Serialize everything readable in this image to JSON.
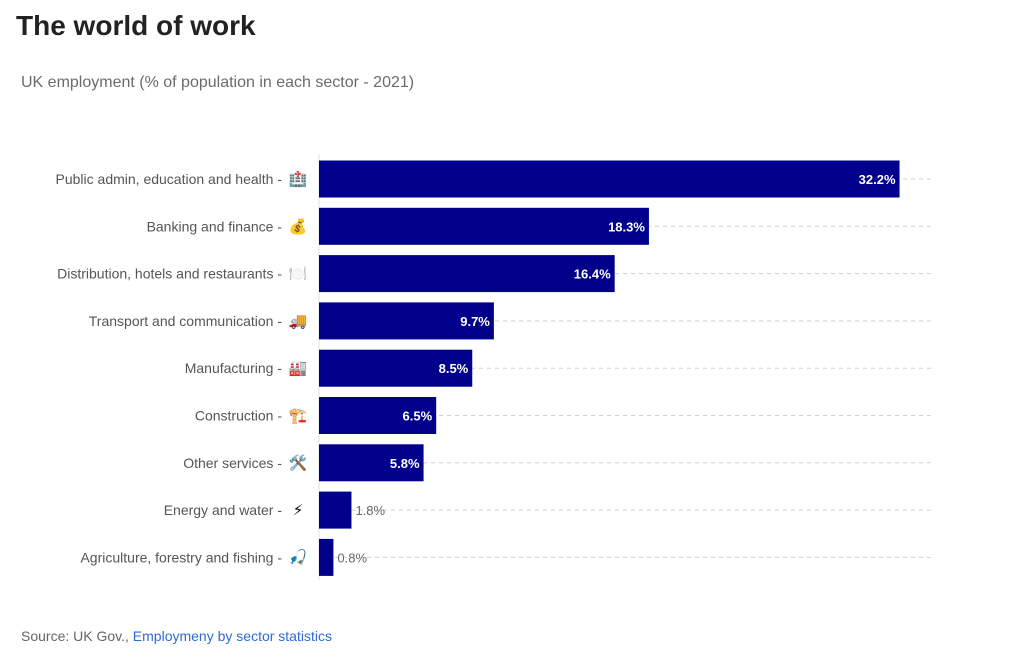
{
  "title": "The world of work",
  "subtitle": "UK employment (% of population in each sector - 2021)",
  "source": {
    "prefix": "Source: UK Gov.,",
    "link_text": "Employmeny by sector statistics"
  },
  "colors": {
    "bar": "#00008b",
    "grid": "#d0d0d0"
  },
  "chart_data": {
    "type": "bar",
    "orientation": "horizontal",
    "title": "The world of work",
    "subtitle": "UK employment (% of population in each sector - 2021)",
    "xlabel": "",
    "ylabel": "",
    "xlim": [
      0,
      34
    ],
    "grid": true,
    "categories": [
      "Public admin, education and health",
      "Banking and finance",
      "Distribution, hotels and restaurants",
      "Transport and communication",
      "Manufacturing",
      "Construction",
      "Other services",
      "Energy and water",
      "Agriculture, forestry and fishing"
    ],
    "icons": [
      "🏥",
      "💰",
      "🍽️",
      "🚚",
      "🏭",
      "🏗️",
      "🛠️",
      "⚡",
      "🎣"
    ],
    "values": [
      32.2,
      18.3,
      16.4,
      9.7,
      8.5,
      6.5,
      5.8,
      1.8,
      0.8
    ],
    "labels": [
      "32.2%",
      "18.3%",
      "16.4%",
      "9.7%",
      "8.5%",
      "6.5%",
      "5.8%",
      "1.8%",
      "0.8%"
    ]
  }
}
